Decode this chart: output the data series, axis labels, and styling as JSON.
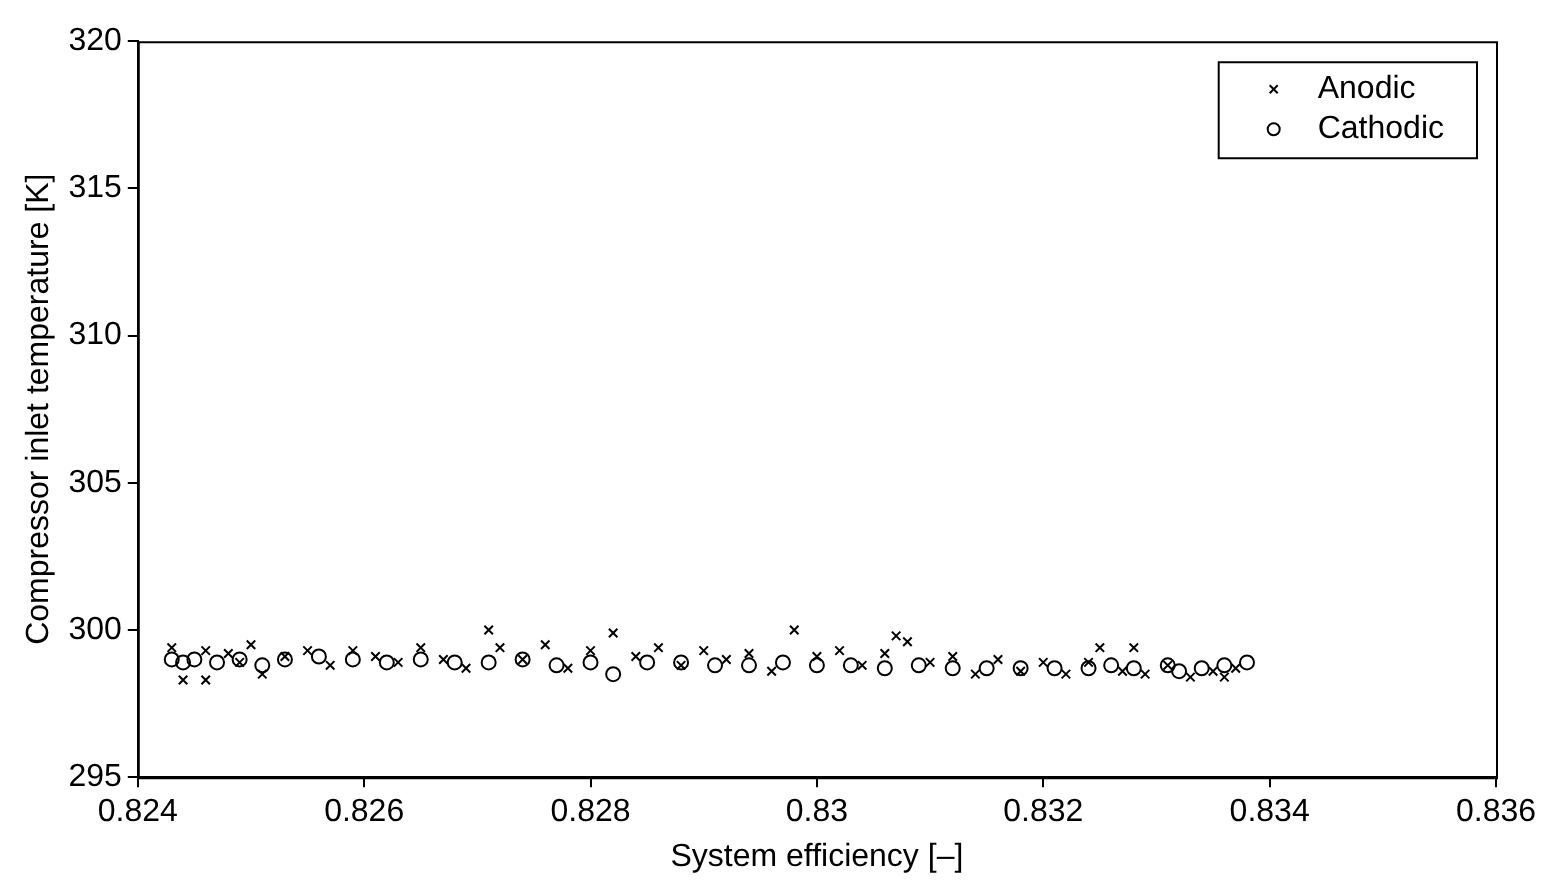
{
  "chart_data": {
    "type": "scatter",
    "xlabel": "System efficiency [–]",
    "ylabel": "Compressor inlet temperature [K]",
    "xlim": [
      0.824,
      0.836
    ],
    "xticks": [
      0.824,
      0.826,
      0.828,
      0.83,
      0.832,
      0.834,
      0.836
    ],
    "ylim": [
      295,
      320
    ],
    "yticks": [
      295,
      300,
      305,
      310,
      315,
      320
    ],
    "grid": false,
    "legend": "top right",
    "series": [
      {
        "name": "Anodic",
        "color": "#000000",
        "marker": "cross",
        "x": [
          0.8243,
          0.8244,
          0.8246,
          0.8246,
          0.8248,
          0.8249,
          0.825,
          0.8251,
          0.8253,
          0.8255,
          0.8257,
          0.8259,
          0.8261,
          0.8263,
          0.8265,
          0.8267,
          0.8269,
          0.8271,
          0.8272,
          0.8274,
          0.8276,
          0.8278,
          0.828,
          0.8282,
          0.8284,
          0.8286,
          0.8288,
          0.829,
          0.8292,
          0.8294,
          0.8296,
          0.8298,
          0.83,
          0.8302,
          0.8304,
          0.8306,
          0.8307,
          0.8308,
          0.831,
          0.8312,
          0.8314,
          0.8316,
          0.8318,
          0.832,
          0.8322,
          0.8324,
          0.8325,
          0.8327,
          0.8328,
          0.8329,
          0.8331,
          0.8333,
          0.8335,
          0.8336,
          0.8337
        ],
        "values": [
          299.4,
          298.3,
          299.3,
          298.3,
          299.2,
          298.9,
          299.5,
          298.5,
          299.1,
          299.3,
          298.8,
          299.3,
          299.1,
          298.9,
          299.4,
          299.0,
          298.7,
          300.0,
          299.4,
          299.0,
          299.5,
          298.7,
          299.3,
          299.9,
          299.1,
          299.4,
          298.8,
          299.3,
          299.0,
          299.2,
          298.6,
          300.0,
          299.1,
          299.3,
          298.8,
          299.2,
          299.8,
          299.6,
          298.9,
          299.1,
          298.5,
          299.0,
          298.6,
          298.9,
          298.5,
          298.9,
          299.4,
          298.6,
          299.4,
          298.5,
          298.8,
          298.4,
          298.6,
          298.4,
          298.7
        ]
      },
      {
        "name": "Cathodic",
        "color": "#000000",
        "marker": "circle",
        "x": [
          0.8243,
          0.8244,
          0.8245,
          0.8247,
          0.8249,
          0.8251,
          0.8253,
          0.8256,
          0.8259,
          0.8262,
          0.8265,
          0.8268,
          0.8271,
          0.8274,
          0.8277,
          0.828,
          0.8282,
          0.8285,
          0.8288,
          0.8291,
          0.8294,
          0.8297,
          0.83,
          0.8303,
          0.8306,
          0.8309,
          0.8312,
          0.8315,
          0.8318,
          0.8321,
          0.8324,
          0.8326,
          0.8328,
          0.8331,
          0.8332,
          0.8334,
          0.8336,
          0.8338
        ],
        "values": [
          299.0,
          298.9,
          299.0,
          298.9,
          299.0,
          298.8,
          299.0,
          299.1,
          299.0,
          298.9,
          299.0,
          298.9,
          298.9,
          299.0,
          298.8,
          298.9,
          298.5,
          298.9,
          298.9,
          298.8,
          298.8,
          298.9,
          298.8,
          298.8,
          298.7,
          298.8,
          298.7,
          298.7,
          298.7,
          298.7,
          298.7,
          298.8,
          298.7,
          298.8,
          298.6,
          298.7,
          298.8,
          298.9
        ]
      }
    ]
  }
}
